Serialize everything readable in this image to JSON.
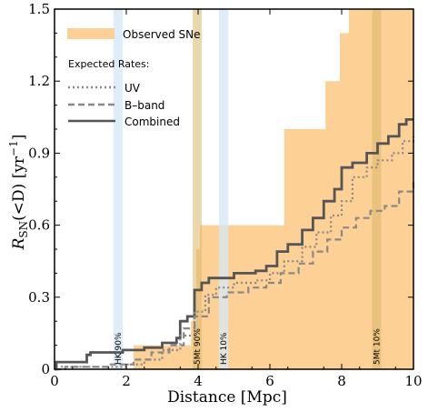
{
  "chart_data": {
    "type": "line",
    "xlabel": "Distance [Mpc]",
    "ylabel_main": "R",
    "ylabel_sub": "SN",
    "ylabel_rest": "(<D) [yr",
    "ylabel_sup": "−1",
    "ylabel_close": "]",
    "xlim": [
      0,
      10
    ],
    "ylim": [
      0,
      1.5
    ],
    "xticks": [
      0,
      2,
      4,
      6,
      8,
      10
    ],
    "xtick_labels": [
      "0",
      "2",
      "4",
      "6",
      "8",
      "10"
    ],
    "yticks": [
      0,
      0.3,
      0.6,
      0.9,
      1.2,
      1.5
    ],
    "ytick_labels": [
      "0",
      "0.3",
      "0.6",
      "0.9",
      "1.2",
      "1.5"
    ],
    "colors": {
      "observed": "#fdd196",
      "blue_band": "#d6e8f5",
      "gold_band": "#d9b66a",
      "curve": "#555555",
      "curve_light": "#888888"
    },
    "legend": {
      "observed_label": "Observed SNe",
      "expected_header": "Expected Rates:",
      "uv_label": "UV",
      "bband_label": "B–band",
      "combined_label": "Combined",
      "placement": "top-left"
    },
    "bands": [
      {
        "label": "HK 90%",
        "x0": 1.64,
        "x1": 1.9,
        "color": "blue"
      },
      {
        "label": "5Mt 90%",
        "x0": 3.85,
        "x1": 4.1,
        "color": "gold"
      },
      {
        "label": "HK 10%",
        "x0": 4.58,
        "x1": 4.84,
        "color": "blue"
      },
      {
        "label": "5Mt 10%",
        "x0": 8.85,
        "x1": 9.1,
        "color": "gold"
      }
    ],
    "observed_steps": [
      [
        0,
        0
      ],
      [
        2.2,
        0
      ],
      [
        2.2,
        0.1
      ],
      [
        3.8,
        0.1
      ],
      [
        3.8,
        0.2
      ],
      [
        3.95,
        0.2
      ],
      [
        3.95,
        0.5
      ],
      [
        4.05,
        0.5
      ],
      [
        4.05,
        0.6
      ],
      [
        6.4,
        0.6
      ],
      [
        6.4,
        1.0
      ],
      [
        7.55,
        1.0
      ],
      [
        7.55,
        1.2
      ],
      [
        7.95,
        1.2
      ],
      [
        7.95,
        1.4
      ],
      [
        8.2,
        1.4
      ],
      [
        8.2,
        1.5
      ],
      [
        10,
        1.5
      ]
    ],
    "series": [
      {
        "name": "Combined",
        "style": "solid",
        "points": [
          [
            0,
            0
          ],
          [
            0.05,
            0.03
          ],
          [
            0.9,
            0.03
          ],
          [
            0.9,
            0.06
          ],
          [
            1.0,
            0.07
          ],
          [
            1.7,
            0.07
          ],
          [
            1.9,
            0.08
          ],
          [
            2.2,
            0.08
          ],
          [
            2.5,
            0.09
          ],
          [
            3.0,
            0.11
          ],
          [
            3.4,
            0.13
          ],
          [
            3.5,
            0.2
          ],
          [
            3.7,
            0.22
          ],
          [
            3.9,
            0.33
          ],
          [
            4.1,
            0.36
          ],
          [
            4.3,
            0.38
          ],
          [
            5.0,
            0.4
          ],
          [
            5.6,
            0.41
          ],
          [
            5.9,
            0.43
          ],
          [
            6.2,
            0.49
          ],
          [
            6.5,
            0.52
          ],
          [
            6.9,
            0.58
          ],
          [
            7.2,
            0.63
          ],
          [
            7.5,
            0.7
          ],
          [
            7.8,
            0.75
          ],
          [
            8.0,
            0.84
          ],
          [
            8.3,
            0.86
          ],
          [
            8.7,
            0.9
          ],
          [
            9.0,
            0.94
          ],
          [
            9.3,
            0.97
          ],
          [
            9.6,
            1.02
          ],
          [
            9.8,
            1.04
          ],
          [
            10,
            1.04
          ]
        ]
      },
      {
        "name": "UV",
        "style": "dotted",
        "points": [
          [
            0,
            0
          ],
          [
            0.2,
            0.01
          ],
          [
            1.0,
            0.01
          ],
          [
            2.0,
            0.02
          ],
          [
            2.5,
            0.04
          ],
          [
            3.0,
            0.08
          ],
          [
            3.5,
            0.14
          ],
          [
            3.9,
            0.24
          ],
          [
            4.2,
            0.31
          ],
          [
            4.5,
            0.34
          ],
          [
            5.0,
            0.36
          ],
          [
            5.6,
            0.37
          ],
          [
            6.0,
            0.4
          ],
          [
            6.4,
            0.45
          ],
          [
            6.9,
            0.51
          ],
          [
            7.3,
            0.57
          ],
          [
            7.7,
            0.64
          ],
          [
            8.0,
            0.7
          ],
          [
            8.3,
            0.8
          ],
          [
            8.7,
            0.84
          ],
          [
            9.0,
            0.87
          ],
          [
            9.4,
            0.9
          ],
          [
            9.7,
            0.95
          ],
          [
            10,
            0.97
          ]
        ]
      },
      {
        "name": "B–band",
        "style": "dashed",
        "points": [
          [
            0,
            0
          ],
          [
            0.3,
            0.01
          ],
          [
            1.5,
            0.02
          ],
          [
            2.2,
            0.04
          ],
          [
            2.7,
            0.07
          ],
          [
            3.2,
            0.1
          ],
          [
            3.6,
            0.17
          ],
          [
            3.9,
            0.22
          ],
          [
            4.3,
            0.3
          ],
          [
            4.8,
            0.32
          ],
          [
            5.4,
            0.34
          ],
          [
            5.9,
            0.36
          ],
          [
            6.3,
            0.4
          ],
          [
            6.8,
            0.44
          ],
          [
            7.2,
            0.49
          ],
          [
            7.6,
            0.54
          ],
          [
            8.0,
            0.59
          ],
          [
            8.4,
            0.63
          ],
          [
            8.8,
            0.66
          ],
          [
            9.2,
            0.68
          ],
          [
            9.6,
            0.74
          ],
          [
            10,
            0.79
          ]
        ]
      }
    ]
  }
}
